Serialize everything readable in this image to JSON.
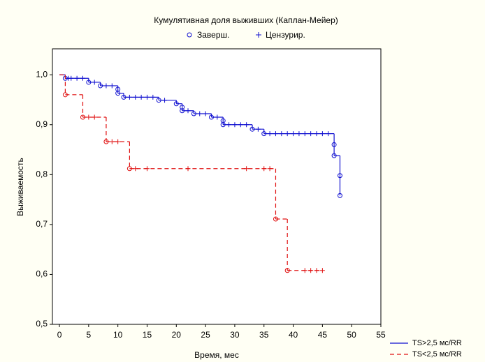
{
  "chart_data": {
    "type": "kaplan-meier",
    "title": "Кумулятивная доля выживших (Каплан-Мейер)",
    "event_label": "Заверш.",
    "censored_label": "Цензурир.",
    "xlabel": "Время, мес",
    "ylabel": "Выживаемость",
    "xlim": [
      -1.2,
      55
    ],
    "ylim": [
      0.5,
      1.052
    ],
    "xticks": [
      0,
      5,
      10,
      15,
      20,
      25,
      30,
      35,
      40,
      45,
      50,
      55
    ],
    "yticks": [
      {
        "value": 0.5,
        "label": "0,5"
      },
      {
        "value": 0.6,
        "label": "0,6"
      },
      {
        "value": 0.7,
        "label": "0,7"
      },
      {
        "value": 0.8,
        "label": "0,8"
      },
      {
        "value": 0.9,
        "label": "0,9"
      },
      {
        "value": 1.0,
        "label": "1,0"
      }
    ],
    "series": [
      {
        "name": "TS>2,5 мс/RR",
        "color": "#1010d0",
        "dash": false,
        "x": [
          0,
          1,
          5,
          7,
          10,
          10,
          11,
          17,
          20,
          21,
          21,
          23,
          26,
          28,
          28,
          33,
          35,
          47,
          47,
          48,
          48
        ],
        "values": [
          1.0,
          0.993,
          0.985,
          0.978,
          0.971,
          0.963,
          0.955,
          0.949,
          0.942,
          0.935,
          0.928,
          0.922,
          0.915,
          0.908,
          0.9,
          0.891,
          0.882,
          0.86,
          0.838,
          0.798,
          0.758
        ],
        "censored_x": [
          1.5,
          2,
          3,
          4,
          6,
          8,
          9,
          12,
          13,
          14,
          15,
          16,
          18,
          22,
          24,
          25,
          27,
          29,
          30,
          31,
          32,
          34,
          36,
          37,
          38,
          39,
          40,
          41,
          42,
          43,
          44,
          45,
          46
        ],
        "censored_values": [
          0.993,
          0.993,
          0.993,
          0.993,
          0.985,
          0.978,
          0.978,
          0.955,
          0.955,
          0.955,
          0.955,
          0.955,
          0.949,
          0.928,
          0.922,
          0.922,
          0.915,
          0.9,
          0.9,
          0.9,
          0.9,
          0.891,
          0.882,
          0.882,
          0.882,
          0.882,
          0.882,
          0.882,
          0.882,
          0.882,
          0.882,
          0.882,
          0.882
        ]
      },
      {
        "name": "TS<2,5 мс/RR",
        "color": "#e01010",
        "dash": true,
        "x": [
          0,
          1,
          4,
          8,
          12,
          37,
          39
        ],
        "values": [
          1.0,
          0.96,
          0.915,
          0.866,
          0.812,
          0.711,
          0.608
        ],
        "censored_x": [
          5,
          6,
          9,
          10,
          13,
          15,
          22,
          32,
          35,
          36,
          42,
          43,
          44,
          45
        ],
        "censored_values": [
          0.915,
          0.915,
          0.866,
          0.866,
          0.812,
          0.812,
          0.812,
          0.812,
          0.812,
          0.812,
          0.608,
          0.608,
          0.608,
          0.608
        ]
      }
    ]
  }
}
